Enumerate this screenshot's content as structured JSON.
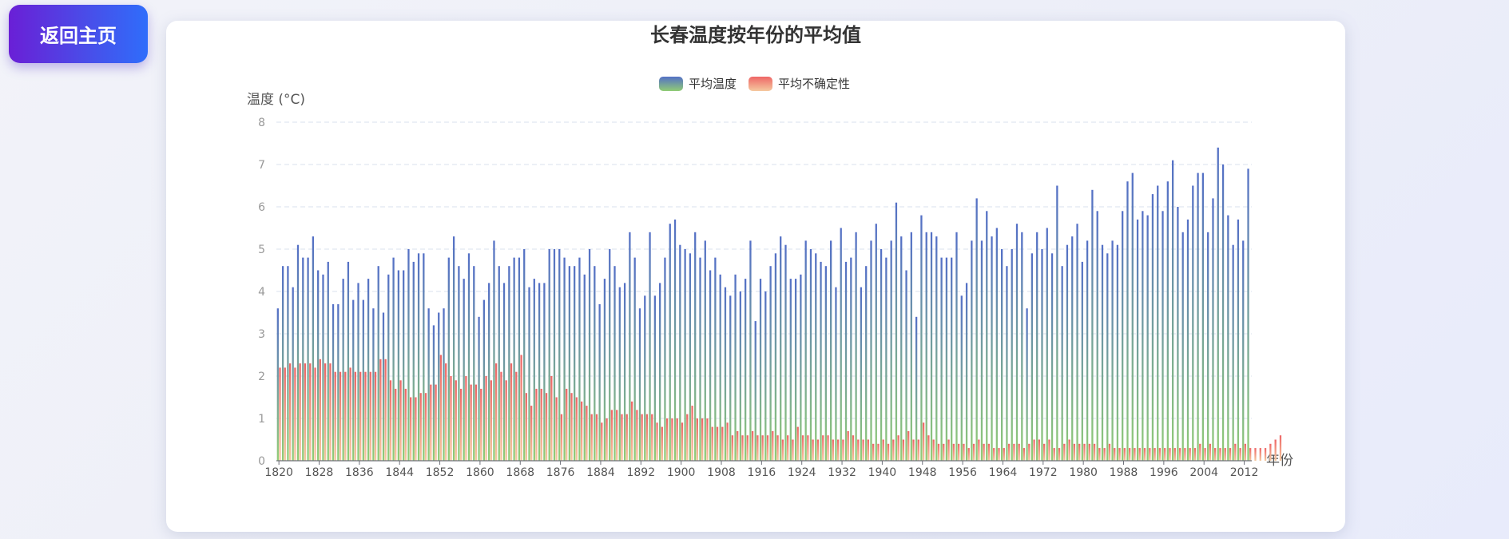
{
  "nav": {
    "back_label": "返回主页"
  },
  "chart_data": {
    "type": "bar",
    "title": "长春温度按年份的平均值",
    "ylabel": "温度 (°C)",
    "xlabel": "年份",
    "ylim": [
      0,
      8
    ],
    "yticks": [
      0,
      1,
      2,
      3,
      4,
      5,
      6,
      7,
      8
    ],
    "grid": true,
    "legend_position": "top-center",
    "x_start": 1820,
    "x_end": 2013,
    "xtick_labels": [
      "1820",
      "1828",
      "1836",
      "1844",
      "1852",
      "1860",
      "1868",
      "1876",
      "1884",
      "1892",
      "1900",
      "1908",
      "1916",
      "1924",
      "1932",
      "1940",
      "1948",
      "1956",
      "1964",
      "1972",
      "1980",
      "1988",
      "1996",
      "2004",
      "2012"
    ],
    "series": [
      {
        "name": "平均温度",
        "colors": [
          "#5470c6",
          "#91cc75"
        ],
        "values": [
          3.6,
          4.6,
          4.6,
          4.1,
          5.1,
          4.8,
          4.8,
          5.3,
          4.5,
          4.4,
          4.7,
          3.7,
          3.7,
          4.3,
          4.7,
          3.8,
          4.2,
          3.8,
          4.3,
          3.6,
          4.6,
          3.5,
          4.4,
          4.8,
          4.5,
          4.5,
          5.0,
          4.7,
          4.9,
          4.9,
          3.6,
          3.2,
          3.5,
          3.6,
          4.8,
          5.3,
          4.6,
          4.3,
          4.9,
          4.6,
          3.4,
          3.8,
          4.2,
          5.2,
          4.6,
          4.2,
          4.6,
          4.8,
          4.8,
          5.0,
          4.1,
          4.3,
          4.2,
          4.2,
          5.0,
          5.0,
          5.0,
          4.8,
          4.6,
          4.6,
          4.8,
          4.4,
          5.0,
          4.6,
          3.7,
          4.3,
          5.0,
          4.6,
          4.1,
          4.2,
          5.4,
          4.8,
          3.6,
          3.9,
          5.4,
          3.9,
          4.2,
          4.8,
          5.6,
          5.7,
          5.1,
          5.0,
          4.9,
          5.4,
          4.8,
          5.2,
          4.5,
          4.8,
          4.4,
          4.1,
          3.9,
          4.4,
          4.0,
          4.3,
          5.2,
          3.3,
          4.3,
          4.0,
          4.6,
          4.9,
          5.3,
          5.1,
          4.3,
          4.3,
          4.4,
          5.2,
          5.0,
          4.9,
          4.7,
          4.6,
          5.2,
          4.1,
          5.5,
          4.7,
          4.8,
          5.4,
          4.1,
          4.6,
          5.2,
          5.6,
          5.0,
          4.8,
          5.2,
          6.1,
          5.3,
          4.5,
          5.4,
          3.4,
          5.8,
          5.4,
          5.4,
          5.3,
          4.8,
          4.8,
          4.8,
          5.4,
          3.9,
          4.2,
          5.2,
          6.2,
          5.2,
          5.9,
          5.3,
          5.5,
          5.0,
          4.6,
          5.0,
          5.6,
          5.4,
          3.6,
          4.9,
          5.4,
          5.0,
          5.5,
          4.9,
          6.5,
          4.6,
          5.1,
          5.3,
          5.6,
          4.7,
          5.2,
          6.4,
          5.9,
          5.1,
          4.9,
          5.2,
          5.1,
          5.9,
          6.6,
          6.8,
          5.7,
          5.9,
          5.8,
          6.3,
          6.5,
          5.9,
          6.6,
          7.1,
          6.0,
          5.4,
          5.7,
          6.5,
          6.8,
          6.8,
          5.4,
          6.2,
          7.4,
          7.0,
          5.8,
          5.1,
          5.7,
          5.2,
          6.9
        ]
      },
      {
        "name": "平均不确定性",
        "colors": [
          "#ee6666",
          "#f5c9a0"
        ],
        "values": [
          2.2,
          2.2,
          2.3,
          2.2,
          2.3,
          2.3,
          2.3,
          2.2,
          2.4,
          2.3,
          2.3,
          2.1,
          2.1,
          2.1,
          2.2,
          2.1,
          2.1,
          2.1,
          2.1,
          2.1,
          2.4,
          2.4,
          1.9,
          1.7,
          1.9,
          1.7,
          1.5,
          1.5,
          1.6,
          1.6,
          1.8,
          1.8,
          2.5,
          2.3,
          2.0,
          1.9,
          1.7,
          2.0,
          1.8,
          1.8,
          1.7,
          2.0,
          1.9,
          2.3,
          2.1,
          1.9,
          2.3,
          2.1,
          2.5,
          1.6,
          1.3,
          1.7,
          1.7,
          1.6,
          2.0,
          1.5,
          1.1,
          1.7,
          1.6,
          1.5,
          1.4,
          1.3,
          1.1,
          1.1,
          0.9,
          1.0,
          1.2,
          1.2,
          1.1,
          1.1,
          1.4,
          1.2,
          1.1,
          1.1,
          1.1,
          0.9,
          0.8,
          1.0,
          1.0,
          1.0,
          0.9,
          1.1,
          1.3,
          1.0,
          1.0,
          1.0,
          0.8,
          0.8,
          0.8,
          0.9,
          0.6,
          0.7,
          0.6,
          0.6,
          0.7,
          0.6,
          0.6,
          0.6,
          0.7,
          0.6,
          0.5,
          0.6,
          0.5,
          0.8,
          0.6,
          0.6,
          0.5,
          0.5,
          0.6,
          0.6,
          0.5,
          0.5,
          0.5,
          0.7,
          0.6,
          0.5,
          0.5,
          0.5,
          0.4,
          0.4,
          0.5,
          0.4,
          0.5,
          0.6,
          0.5,
          0.7,
          0.5,
          0.5,
          0.9,
          0.6,
          0.5,
          0.4,
          0.4,
          0.5,
          0.4,
          0.4,
          0.4,
          0.3,
          0.4,
          0.5,
          0.4,
          0.4,
          0.3,
          0.3,
          0.3,
          0.4,
          0.4,
          0.4,
          0.3,
          0.4,
          0.5,
          0.5,
          0.4,
          0.5,
          0.3,
          0.3,
          0.4,
          0.5,
          0.4,
          0.4,
          0.4,
          0.4,
          0.4,
          0.3,
          0.3,
          0.4,
          0.3,
          0.3,
          0.3,
          0.3,
          0.3,
          0.3,
          0.3,
          0.3,
          0.3,
          0.3,
          0.3,
          0.3,
          0.3,
          0.3,
          0.3,
          0.3,
          0.3,
          0.4,
          0.3,
          0.4,
          0.3,
          0.3,
          0.3,
          0.3,
          0.4,
          0.3,
          0.4,
          0.3,
          0.3,
          0.3,
          0.3,
          0.4,
          0.5,
          0.6
        ]
      }
    ]
  },
  "colors": {
    "button_gradient_start": "#6a1fd6",
    "button_gradient_end": "#2f6dfb",
    "axis": "#6e7079",
    "grid": "#e0e6f1"
  }
}
